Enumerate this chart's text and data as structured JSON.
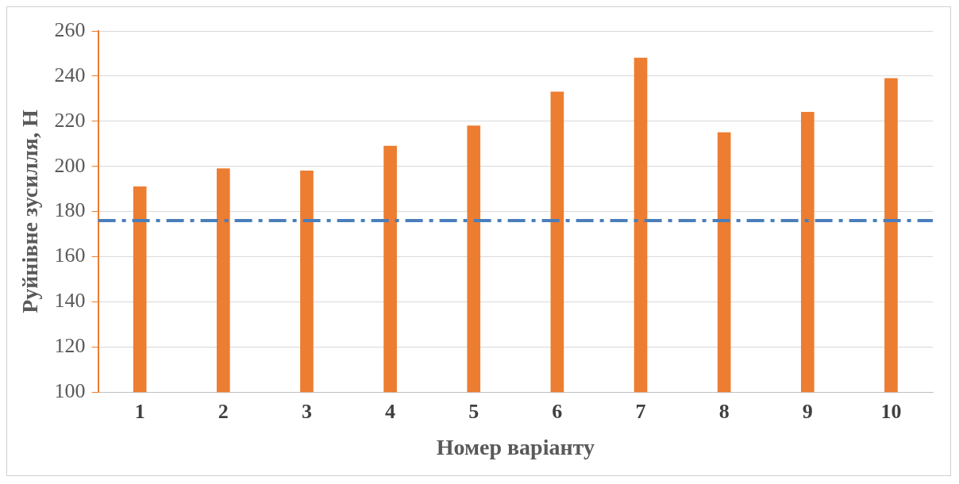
{
  "chart_data": {
    "type": "bar",
    "xlabel": "Номер варіанту",
    "ylabel": "Руйнівне зусилля, Н",
    "categories": [
      "1",
      "2",
      "3",
      "4",
      "5",
      "6",
      "7",
      "8",
      "9",
      "10"
    ],
    "values": [
      191,
      199,
      198,
      209,
      218,
      233,
      248,
      215,
      224,
      239
    ],
    "color": "#ed7d31",
    "ylim": [
      100,
      260
    ],
    "yticks": [
      100,
      120,
      140,
      160,
      180,
      200,
      220,
      240,
      260
    ],
    "grid": "y",
    "legend": false,
    "ref_lines": [
      {
        "axis": "y",
        "value": 176,
        "color": "#4a7ebb",
        "line_style": "dashed"
      }
    ]
  }
}
